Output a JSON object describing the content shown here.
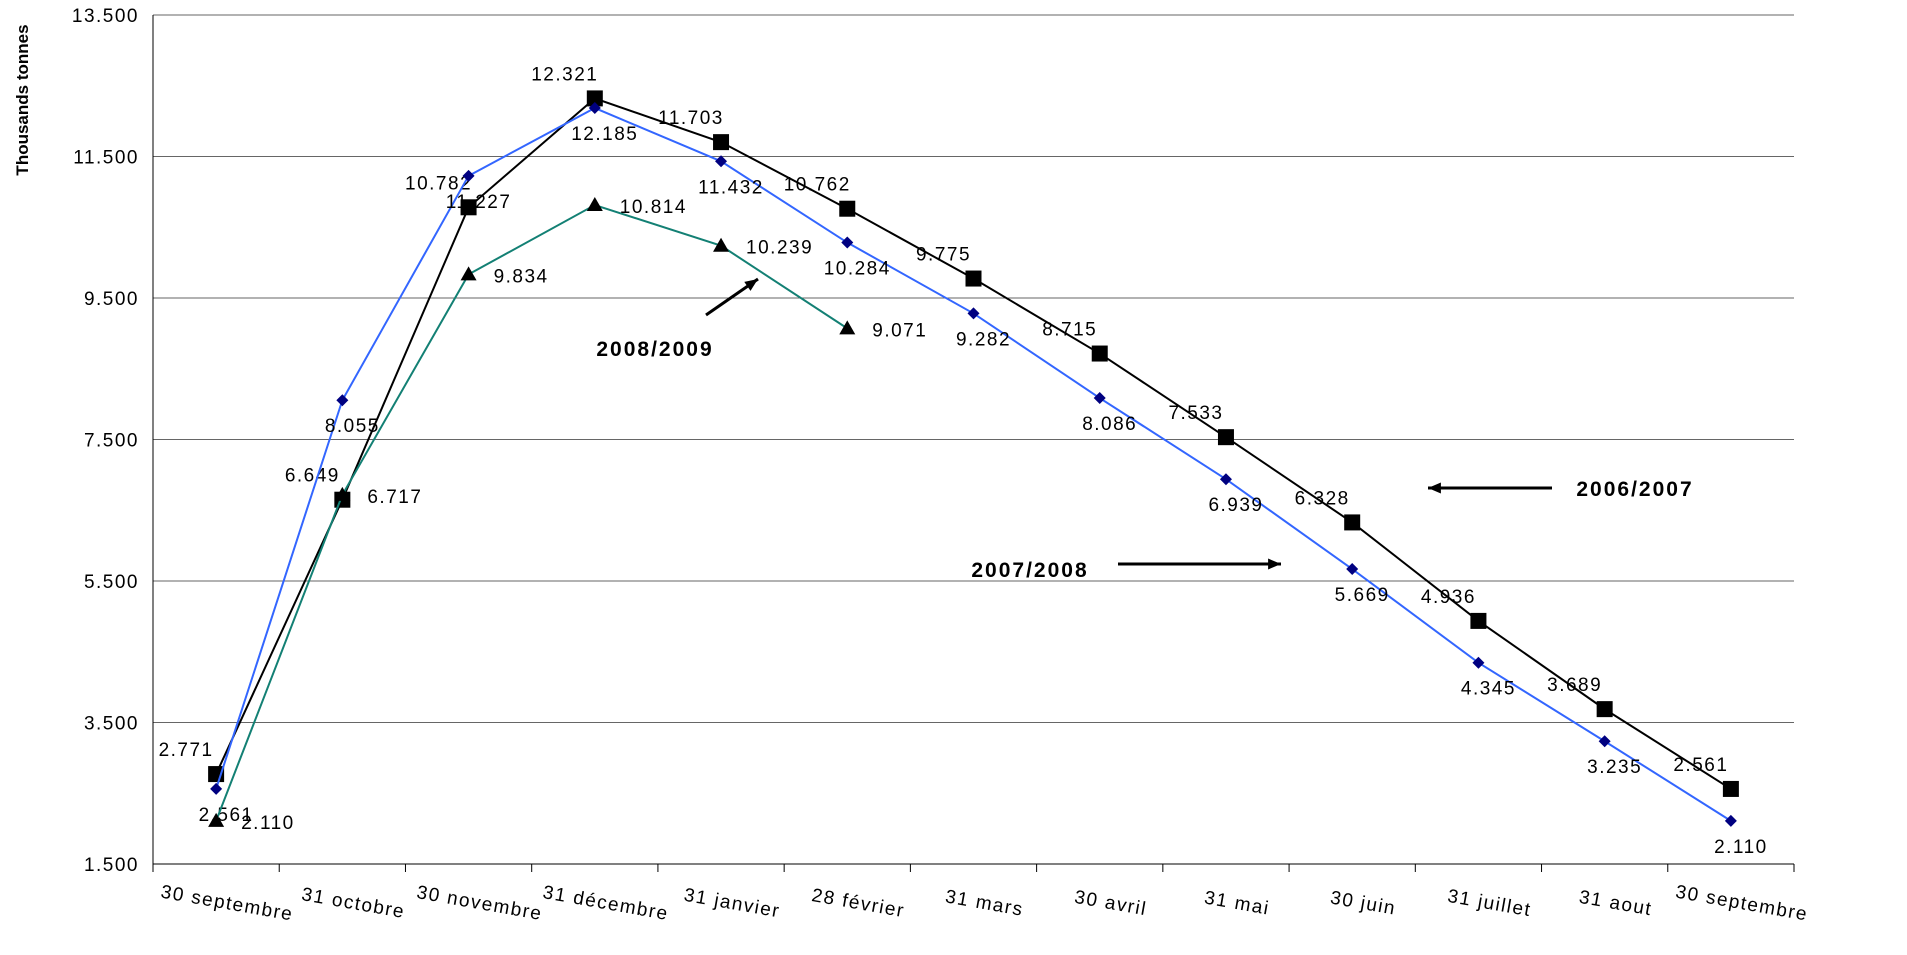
{
  "chart_data": {
    "type": "line",
    "y_label": "Thousands tonnes",
    "categories": [
      "30 septembre",
      "31 octobre",
      "30 novembre",
      "31 décembre",
      "31 janvier",
      "28 février",
      "31 mars",
      "30 avril",
      "31 mai",
      "30 juin",
      "31 juillet",
      "31 aout",
      "30 septembre"
    ],
    "ylim": [
      1500,
      13500
    ],
    "yticks": [
      {
        "value": 1500,
        "label": "1.500"
      },
      {
        "value": 3500,
        "label": "3.500"
      },
      {
        "value": 5500,
        "label": "5.500"
      },
      {
        "value": 7500,
        "label": "7.500"
      },
      {
        "value": 9500,
        "label": "9.500"
      },
      {
        "value": 11500,
        "label": "11.500"
      },
      {
        "value": 13500,
        "label": "13.500"
      }
    ],
    "grid": true,
    "series": [
      {
        "name": "2006/2007",
        "color": "#000000",
        "marker": "square",
        "values": [
          2771,
          6649,
          10782,
          12321,
          11703,
          10762,
          9775,
          8715,
          7533,
          6328,
          4936,
          3689,
          2561
        ],
        "value_labels": [
          "2.771",
          "6.649",
          "10.782",
          "12.321",
          "11.703",
          "10.762",
          "9.775",
          "8.715",
          "7.533",
          "6.328",
          "4.936",
          "3.689",
          "2.561"
        ]
      },
      {
        "name": "2007/2008",
        "color": "#3366ff",
        "marker": "diamond",
        "values": [
          2561,
          8055,
          11227,
          12185,
          11432,
          10284,
          9282,
          8086,
          6939,
          5669,
          4345,
          3235,
          2110
        ],
        "value_labels": [
          "2.561",
          "8.055",
          "11.227",
          "12.185",
          "11.432",
          "10.284",
          "9.282",
          "8.086",
          "6.939",
          "5.669",
          "4.345",
          "3.235",
          "2.110"
        ]
      },
      {
        "name": "2008/2009",
        "color": "#138074",
        "marker": "triangle",
        "values": [
          2110,
          6717,
          9834,
          10814,
          10239,
          9071,
          null,
          null,
          null,
          null,
          null,
          null,
          null
        ],
        "value_labels": [
          "2.110",
          "6.717",
          "9.834",
          "10.814",
          "10.239",
          "9.071",
          null,
          null,
          null,
          null,
          null,
          null,
          null
        ]
      }
    ]
  }
}
